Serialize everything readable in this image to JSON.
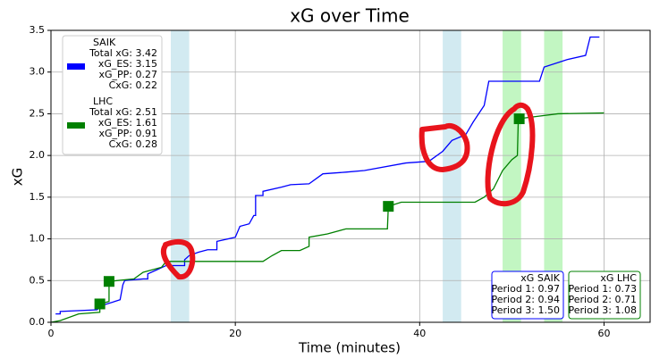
{
  "chart_data": {
    "type": "line",
    "title": "xG over Time",
    "x_label": "Time (minutes)",
    "y_label": "xG",
    "xlim": [
      0,
      65
    ],
    "ylim": [
      0,
      3.5
    ],
    "xticks": [
      0,
      20,
      40,
      60
    ],
    "yticks": [
      {
        "value": 0,
        "label": "0.0"
      },
      {
        "value": 0.5,
        "label": "0.5"
      },
      {
        "value": 1,
        "label": "1.0"
      },
      {
        "value": 1.5,
        "label": "1.5"
      },
      {
        "value": 2,
        "label": "2.0"
      },
      {
        "value": 2.5,
        "label": "2.5"
      },
      {
        "value": 3,
        "label": "3.0"
      },
      {
        "value": 3.5,
        "label": "3.5"
      }
    ],
    "grid": true,
    "bands": [
      {
        "range": [
          13,
          15
        ],
        "color": "#add8e6"
      },
      {
        "range": [
          42.5,
          44.5
        ],
        "color": "#add8e6"
      },
      {
        "range": [
          49,
          51
        ],
        "color": "#90ee90"
      },
      {
        "range": [
          53.5,
          55.5
        ],
        "color": "#90ee90"
      }
    ],
    "series": [
      {
        "name": "SAIK",
        "color": "#0000ff",
        "legend_lines": [
          "Total xG: 3.42",
          "xG_ES: 3.15",
          "xG_PP: 0.27",
          "CxG: 0.22"
        ],
        "x": [
          0.5,
          1,
          1,
          5,
          5.5,
          7.5,
          7.8,
          8,
          10,
          10.5,
          10.5,
          11.5,
          12.5,
          14.5,
          14.5,
          15,
          16,
          17,
          18,
          18,
          20,
          20.5,
          21.5,
          22,
          22.2,
          22.2,
          23,
          23,
          25,
          26,
          28,
          29.5,
          32,
          34,
          38.5,
          41,
          42.5,
          43.5,
          45,
          45.8,
          47,
          47.5,
          53,
          53.5,
          56,
          58,
          58.5,
          59.5
        ],
        "values": [
          0.1,
          0.1,
          0.13,
          0.15,
          0.2,
          0.27,
          0.45,
          0.5,
          0.52,
          0.52,
          0.58,
          0.63,
          0.68,
          0.68,
          0.75,
          0.8,
          0.84,
          0.87,
          0.87,
          0.97,
          1.02,
          1.15,
          1.18,
          1.28,
          1.28,
          1.52,
          1.52,
          1.57,
          1.62,
          1.65,
          1.66,
          1.78,
          1.8,
          1.82,
          1.91,
          1.93,
          2.05,
          2.18,
          2.25,
          2.4,
          2.6,
          2.89,
          2.89,
          3.06,
          3.15,
          3.2,
          3.42,
          3.42
        ]
      },
      {
        "name": "LHC",
        "color": "#008000",
        "legend_lines": [
          "Total xG: 2.51",
          "xG_ES: 1.61",
          "xG_PP: 0.91",
          "CxG: 0.28"
        ],
        "x": [
          0,
          1,
          3,
          5.3,
          5.3,
          6.3,
          6.3,
          9,
          10,
          12,
          12.5,
          23,
          24,
          25,
          27,
          28,
          28,
          30,
          32,
          36.5,
          36.6,
          38,
          46,
          47,
          48,
          49,
          50,
          50.6,
          50.7,
          55,
          60
        ],
        "values": [
          0,
          0.02,
          0.1,
          0.12,
          0.22,
          0.25,
          0.49,
          0.52,
          0.6,
          0.66,
          0.73,
          0.73,
          0.8,
          0.86,
          0.86,
          0.91,
          1.02,
          1.06,
          1.12,
          1.12,
          1.39,
          1.44,
          1.44,
          1.5,
          1.6,
          1.82,
          1.95,
          2.0,
          2.44,
          2.5,
          2.51
        ],
        "markers": {
          "x": [
            5.3,
            6.3,
            36.6,
            50.8
          ],
          "values": [
            0.22,
            0.49,
            1.39,
            2.44
          ]
        }
      }
    ],
    "period_boxes": [
      {
        "title": "xG SAIK",
        "color": "#0000ff",
        "lines": [
          "Period 1: 0.97",
          "Period 2: 0.94",
          "Period 3: 1.50"
        ]
      },
      {
        "title": "xG LHC",
        "color": "#008000",
        "lines": [
          "Period 1: 0.73",
          "Period 2: 0.71",
          "Period 3: 1.08"
        ]
      }
    ]
  }
}
